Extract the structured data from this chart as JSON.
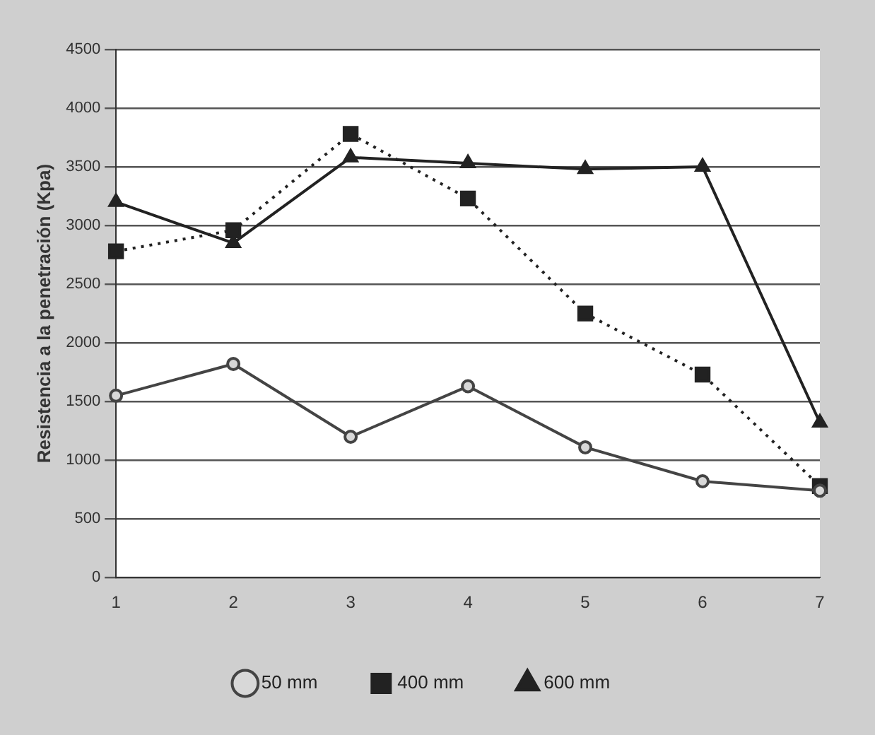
{
  "chart_data": {
    "type": "line",
    "ylabel": "Resistencia a la penetración (Kpa)",
    "categories": [
      "1",
      "2",
      "3",
      "4",
      "5",
      "6",
      "7"
    ],
    "series": [
      {
        "name": "50 mm",
        "color": "#444444",
        "marker": "circle",
        "line_style": "solid",
        "values": [
          1550,
          1820,
          1200,
          1630,
          1110,
          820,
          740
        ]
      },
      {
        "name": "400 mm",
        "color": "#222222",
        "marker": "square",
        "line_style": "dotted",
        "values": [
          2780,
          2960,
          3780,
          3230,
          2250,
          1730,
          780
        ]
      },
      {
        "name": "600 mm",
        "color": "#222222",
        "marker": "triangle",
        "line_style": "solid",
        "values": [
          3200,
          2850,
          3580,
          3530,
          3480,
          3500,
          1320
        ]
      }
    ],
    "ylim": [
      0,
      4500
    ],
    "yticks": [
      0,
      500,
      1000,
      1500,
      2000,
      2500,
      3000,
      3500,
      4000,
      4500
    ],
    "grid": "y",
    "legend": "bottom"
  }
}
